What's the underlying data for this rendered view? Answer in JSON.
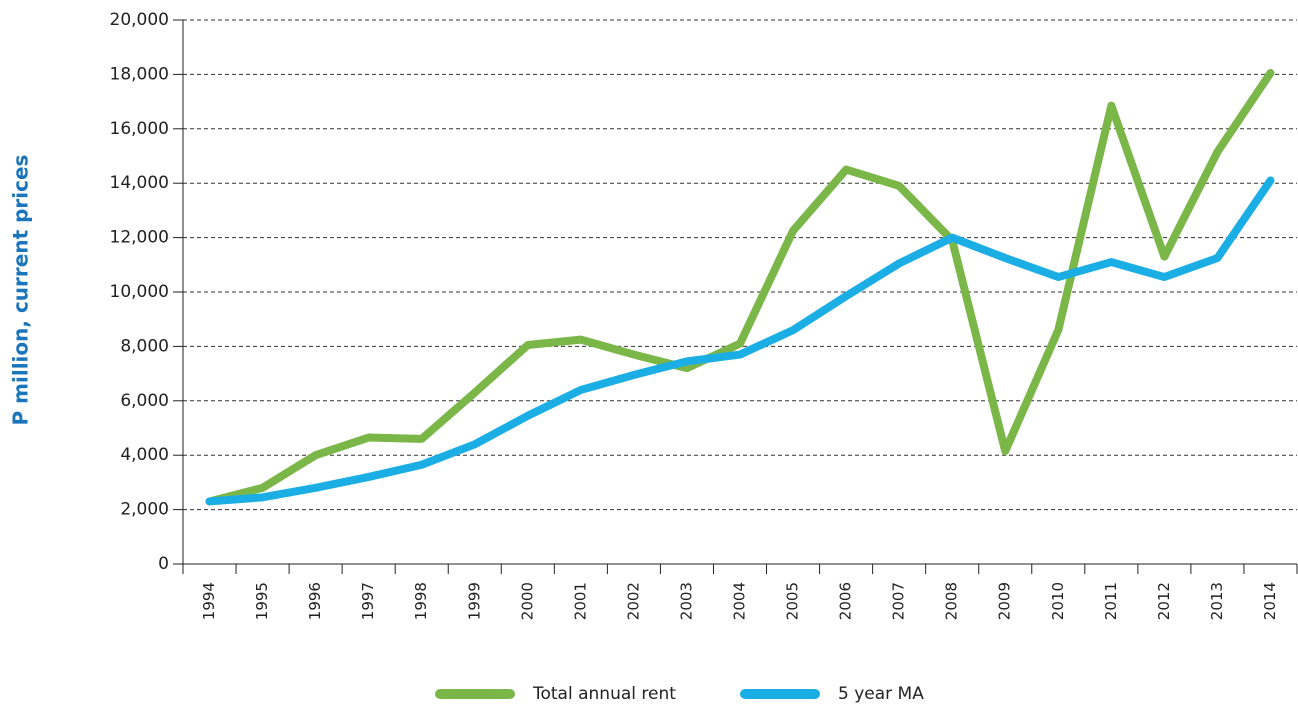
{
  "chart_data": {
    "type": "line",
    "y_label": "P million, current prices",
    "categories": [
      "1994",
      "1995",
      "1996",
      "1997",
      "1998",
      "1999",
      "2000",
      "2001",
      "2002",
      "2003",
      "2004",
      "2005",
      "2006",
      "2007",
      "2008",
      "2009",
      "2010",
      "2011",
      "2012",
      "2013",
      "2014"
    ],
    "series": [
      {
        "name": "Total annual rent",
        "color": "#7ab648",
        "values": [
          2300,
          2800,
          4000,
          4650,
          4600,
          6300,
          8050,
          8250,
          7700,
          7200,
          8100,
          12250,
          14500,
          13900,
          11900,
          4150,
          8600,
          16850,
          11300,
          15150,
          18050
        ]
      },
      {
        "name": "5 year MA",
        "color": "#1aaee5",
        "values": [
          2300,
          2450,
          2800,
          3200,
          3650,
          4400,
          5450,
          6400,
          6950,
          7450,
          7700,
          8600,
          9850,
          11050,
          12000,
          11250,
          10550,
          11100,
          10550,
          11250,
          14100
        ]
      }
    ],
    "ylim": [
      0,
      20000
    ],
    "yticks": [
      0,
      {
        "value": 2000,
        "label": "2,000"
      },
      {
        "value": 4000,
        "label": "4,000"
      },
      {
        "value": 6000,
        "label": "6,000"
      },
      {
        "value": 8000,
        "label": "8,000"
      },
      {
        "value": 10000,
        "label": "10,000"
      },
      {
        "value": 12000,
        "label": "12,000"
      },
      {
        "value": 14000,
        "label": "14,000"
      },
      {
        "value": 16000,
        "label": "16,000"
      },
      {
        "value": 18000,
        "label": "18,000"
      },
      {
        "value": 20000,
        "label": "20,000"
      }
    ],
    "grid": true,
    "legend": "bottom"
  }
}
